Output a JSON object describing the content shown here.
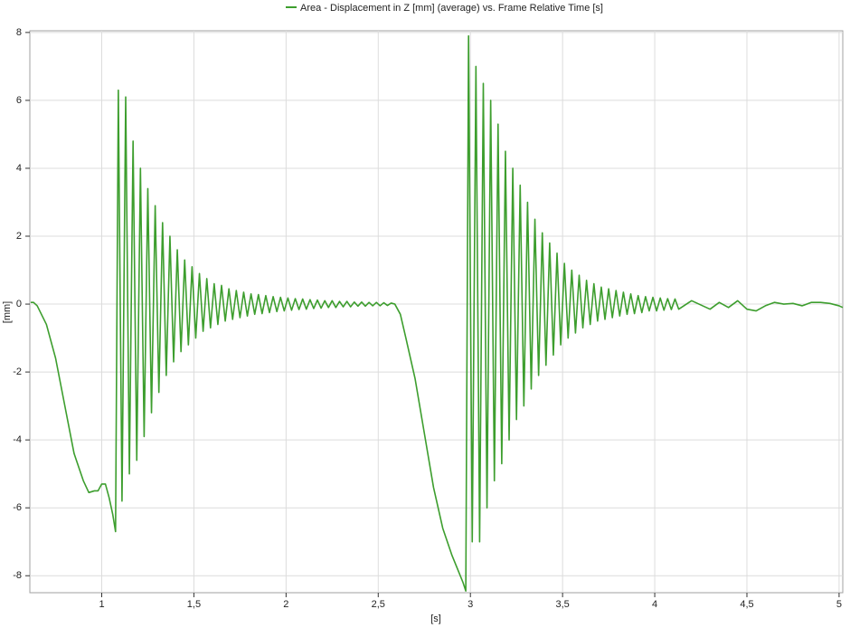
{
  "chart_data": {
    "type": "line",
    "xlabel": "[s]",
    "ylabel": "[mm]",
    "xlim": [
      0.61,
      5.02
    ],
    "ylim": [
      -8.5,
      8.05
    ],
    "xticks": [
      1,
      {
        "value": 1.5,
        "label": "1,5"
      },
      2,
      {
        "value": 2.5,
        "label": "2,5"
      },
      3,
      {
        "value": 3.5,
        "label": "3,5"
      },
      4,
      {
        "value": 4.5,
        "label": "4,5"
      },
      5
    ],
    "yticks": [
      -8,
      -6,
      -4,
      -2,
      0,
      2,
      4,
      6,
      8
    ],
    "grid": true,
    "series": [
      {
        "name": "Area - Displacement in Z [mm] (average) vs. Frame Relative Time [s]",
        "color": "#3d9e2e",
        "x": [
          0.615,
          0.63,
          0.65,
          0.7,
          0.75,
          0.8,
          0.85,
          0.9,
          0.93,
          0.96,
          0.98,
          1.0,
          1.02,
          1.04,
          1.06,
          1.075,
          1.09,
          1.11,
          1.13,
          1.15,
          1.17,
          1.19,
          1.21,
          1.23,
          1.25,
          1.27,
          1.29,
          1.31,
          1.33,
          1.35,
          1.37,
          1.39,
          1.41,
          1.43,
          1.45,
          1.47,
          1.49,
          1.51,
          1.53,
          1.55,
          1.57,
          1.59,
          1.61,
          1.63,
          1.65,
          1.67,
          1.69,
          1.71,
          1.73,
          1.75,
          1.77,
          1.79,
          1.81,
          1.83,
          1.85,
          1.87,
          1.89,
          1.91,
          1.93,
          1.95,
          1.97,
          1.99,
          2.01,
          2.03,
          2.05,
          2.07,
          2.09,
          2.11,
          2.13,
          2.15,
          2.17,
          2.19,
          2.21,
          2.23,
          2.25,
          2.27,
          2.29,
          2.31,
          2.33,
          2.35,
          2.37,
          2.39,
          2.41,
          2.43,
          2.45,
          2.47,
          2.49,
          2.51,
          2.53,
          2.55,
          2.57,
          2.59,
          2.62,
          2.65,
          2.7,
          2.75,
          2.8,
          2.85,
          2.9,
          2.93,
          2.96,
          2.975,
          2.99,
          3.01,
          3.03,
          3.05,
          3.07,
          3.09,
          3.11,
          3.13,
          3.15,
          3.17,
          3.19,
          3.21,
          3.23,
          3.25,
          3.27,
          3.29,
          3.31,
          3.33,
          3.35,
          3.37,
          3.39,
          3.41,
          3.43,
          3.45,
          3.47,
          3.49,
          3.51,
          3.53,
          3.55,
          3.57,
          3.59,
          3.61,
          3.63,
          3.65,
          3.67,
          3.69,
          3.71,
          3.73,
          3.75,
          3.77,
          3.79,
          3.81,
          3.83,
          3.85,
          3.87,
          3.89,
          3.91,
          3.93,
          3.95,
          3.97,
          3.99,
          4.01,
          4.03,
          4.05,
          4.07,
          4.09,
          4.11,
          4.13,
          4.2,
          4.3,
          4.35,
          4.4,
          4.45,
          4.5,
          4.55,
          4.6,
          4.65,
          4.7,
          4.75,
          4.8,
          4.85,
          4.9,
          4.95,
          5.0,
          5.02
        ],
        "values": [
          0.05,
          0.05,
          -0.05,
          -0.6,
          -1.6,
          -3.0,
          -4.4,
          -5.2,
          -5.55,
          -5.5,
          -5.5,
          -5.3,
          -5.3,
          -5.7,
          -6.2,
          -6.7,
          6.3,
          -5.8,
          6.1,
          -5.0,
          4.8,
          -4.6,
          4.0,
          -3.9,
          3.4,
          -3.2,
          2.9,
          -2.6,
          2.4,
          -2.1,
          2.0,
          -1.7,
          1.6,
          -1.4,
          1.3,
          -1.2,
          1.1,
          -1.0,
          0.9,
          -0.8,
          0.75,
          -0.7,
          0.6,
          -0.6,
          0.55,
          -0.5,
          0.45,
          -0.45,
          0.4,
          -0.4,
          0.35,
          -0.35,
          0.3,
          -0.3,
          0.28,
          -0.28,
          0.25,
          -0.25,
          0.22,
          -0.22,
          0.2,
          -0.2,
          0.18,
          -0.18,
          0.16,
          -0.16,
          0.15,
          -0.15,
          0.13,
          -0.13,
          0.12,
          -0.12,
          0.1,
          -0.1,
          0.1,
          -0.1,
          0.08,
          -0.08,
          0.08,
          -0.08,
          0.06,
          -0.06,
          0.06,
          -0.06,
          0.05,
          -0.05,
          0.05,
          -0.05,
          0.04,
          -0.04,
          0.03,
          0,
          -0.3,
          -1.0,
          -2.2,
          -3.8,
          -5.4,
          -6.6,
          -7.4,
          -7.8,
          -8.2,
          -8.45,
          7.9,
          -7.0,
          7.0,
          -7.0,
          6.5,
          -6.0,
          6.0,
          -5.2,
          5.3,
          -4.7,
          4.5,
          -4.0,
          4.0,
          -3.4,
          3.5,
          -3.0,
          3.0,
          -2.5,
          2.5,
          -2.1,
          2.1,
          -1.8,
          1.8,
          -1.5,
          1.5,
          -1.2,
          1.2,
          -1.0,
          1.0,
          -0.85,
          0.85,
          -0.7,
          0.7,
          -0.6,
          0.6,
          -0.5,
          0.5,
          -0.45,
          0.45,
          -0.4,
          0.4,
          -0.35,
          0.35,
          -0.3,
          0.3,
          -0.28,
          0.25,
          -0.25,
          0.22,
          -0.2,
          0.2,
          -0.2,
          0.18,
          -0.18,
          0.16,
          -0.16,
          0.15,
          -0.15,
          0.1,
          -0.15,
          0.05,
          -0.1,
          0.1,
          -0.15,
          -0.2,
          -0.05,
          0.05,
          0.0,
          0.02,
          -0.05,
          0.05,
          0.05,
          0.02,
          -0.05,
          -0.1
        ]
      }
    ]
  }
}
